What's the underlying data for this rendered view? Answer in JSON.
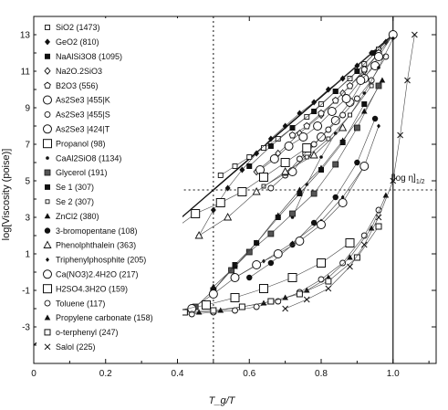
{
  "chart_data": {
    "type": "scatter",
    "xlabel": "T_g/T",
    "ylabel": "log[Viscosity (poise)]",
    "xlim": [
      0,
      1.12
    ],
    "ylim": [
      -5,
      14
    ],
    "xticks": [
      0,
      0.2,
      0.4,
      0.6,
      0.8,
      1.0
    ],
    "xtick_labels": [
      "0",
      "0.2",
      "0.4",
      "0.6",
      "0.8",
      "1.0"
    ],
    "yticks": [
      -3,
      -1,
      1,
      3,
      5,
      7,
      9,
      11,
      13
    ],
    "ytick_labels": [
      "-3",
      "-1",
      "1",
      "3",
      "5",
      "7",
      "9",
      "11",
      "13"
    ],
    "grid": false,
    "legend_position": "top-left",
    "annotations": [
      {
        "text": "[log η]",
        "sub": "1/2",
        "x": 1.03,
        "y": 4.75
      }
    ],
    "reference_lines": [
      {
        "type": "vertical",
        "x": 0.5,
        "style": "dotted"
      },
      {
        "type": "vertical",
        "x": 1.0,
        "style": "solid"
      },
      {
        "type": "horizontal",
        "y": 4.5,
        "style": "dotted"
      }
    ],
    "series": [
      {
        "name": "SiO2 (1473)",
        "marker": "square-open-small",
        "x": [
          0.52,
          0.56,
          0.6,
          0.64,
          0.68,
          0.72,
          0.76,
          0.8,
          0.84,
          0.88,
          0.92,
          0.96,
          1.0
        ],
        "y": [
          5.3,
          5.8,
          6.3,
          6.8,
          7.3,
          7.9,
          8.5,
          9.2,
          9.9,
          10.6,
          11.4,
          12.2,
          13.0
        ]
      },
      {
        "name": "GeO2 (810)",
        "marker": "diamond-filled",
        "x": [
          0.46,
          0.5,
          0.54,
          0.58,
          0.62,
          0.66,
          0.7,
          0.74,
          0.78,
          0.82,
          0.86,
          0.9,
          0.94,
          0.98,
          1.0
        ],
        "y": [
          2.0,
          3.4,
          4.6,
          5.6,
          6.5,
          7.3,
          8.0,
          8.7,
          9.3,
          10.0,
          10.6,
          11.3,
          12.0,
          12.6,
          13.0
        ]
      },
      {
        "name": "NaAlSi3O8 (1095)",
        "marker": "square-filled",
        "x": [
          0.6,
          0.66,
          0.72,
          0.78,
          0.84,
          0.9,
          0.95,
          1.0
        ],
        "y": [
          5.8,
          6.9,
          7.9,
          8.8,
          9.9,
          11.0,
          12.0,
          13.0
        ]
      },
      {
        "name": "Na2O.2SiO3",
        "marker": "diamond-open",
        "x": [
          0.62,
          0.68,
          0.74,
          0.8,
          0.86,
          0.92,
          0.96,
          1.0
        ],
        "y": [
          5.5,
          6.5,
          7.6,
          8.6,
          9.8,
          11.0,
          12.0,
          13.0
        ]
      },
      {
        "name": "B2O3 (556)",
        "marker": "pentagon-open",
        "x": [
          0.72,
          0.76,
          0.8,
          0.84,
          0.88,
          0.92,
          0.96,
          1.0
        ],
        "y": [
          7.5,
          8.0,
          8.7,
          9.4,
          10.2,
          11.1,
          12.0,
          13.0
        ]
      },
      {
        "name": "As2Se3 |455|K",
        "marker": "circle-open-large",
        "x": [
          0.72,
          0.76,
          0.8,
          0.84,
          0.88,
          0.92,
          0.96,
          1.0
        ],
        "y": [
          5.5,
          6.5,
          7.4,
          8.3,
          9.3,
          10.6,
          11.8,
          13.0
        ]
      },
      {
        "name": "As2Se3 |455|S",
        "marker": "circle-open",
        "x": [
          0.66,
          0.7,
          0.74,
          0.78,
          0.82,
          0.86,
          0.9,
          0.94,
          0.98
        ],
        "y": [
          4.6,
          5.3,
          6.2,
          7.0,
          7.8,
          8.6,
          9.5,
          10.5,
          11.8
        ]
      },
      {
        "name": "As2Se3 |424|T",
        "marker": "circle-open-large",
        "x": [
          0.63,
          0.67,
          0.71,
          0.75,
          0.79,
          0.83,
          0.87,
          0.91,
          0.95
        ],
        "y": [
          5.6,
          6.2,
          6.9,
          7.4,
          8.0,
          8.8,
          9.5,
          10.5,
          11.3
        ]
      },
      {
        "name": "Propanol (98)",
        "marker": "square-open-large",
        "x": [
          0.38,
          0.45,
          0.52,
          0.58,
          0.64,
          0.7,
          0.76
        ],
        "y": [
          2.2,
          3.2,
          3.8,
          4.4,
          5.2,
          6.0,
          6.8
        ]
      },
      {
        "name": "CaAl2SiO8 (1134)",
        "marker": "dot-small",
        "x": [
          0.72,
          0.76,
          0.8,
          0.84,
          0.88,
          0.92,
          0.96,
          1.0
        ],
        "y": [
          3.0,
          4.8,
          6.3,
          7.6,
          8.6,
          9.8,
          11.2,
          12.8
        ]
      },
      {
        "name": "Glycerol (191)",
        "marker": "square-halftone",
        "x": [
          0.45,
          0.5,
          0.55,
          0.6,
          0.66,
          0.72,
          0.78,
          0.84,
          0.9,
          0.96
        ],
        "y": [
          -1.9,
          -1.0,
          0.1,
          1.1,
          2.1,
          3.2,
          4.3,
          5.9,
          7.9,
          10.2
        ]
      },
      {
        "name": "Se 1 (307)",
        "marker": "square-filled",
        "x": [
          0.5,
          0.56,
          0.62,
          0.68,
          0.74,
          0.8,
          0.86,
          0.92
        ],
        "y": [
          -1.0,
          0.4,
          1.6,
          3.0,
          4.3,
          5.6,
          7.1,
          9.2
        ]
      },
      {
        "name": "Se 2 (307)",
        "marker": "square-small",
        "x": [
          0.64,
          0.7,
          0.76,
          0.82,
          0.88,
          0.94
        ],
        "y": [
          4.7,
          5.4,
          6.3,
          7.3,
          8.6,
          10.2
        ]
      },
      {
        "name": "ZnCl2 (380)",
        "marker": "triangle-filled",
        "x": [
          0.5,
          0.56,
          0.62,
          0.68,
          0.74,
          0.8,
          0.86,
          0.92,
          0.97
        ],
        "y": [
          -0.8,
          0.3,
          1.6,
          3.1,
          4.5,
          5.7,
          7.2,
          8.8,
          10.5
        ]
      },
      {
        "name": "3-bromopentane (108)",
        "marker": "circle-filled",
        "x": [
          0.6,
          0.66,
          0.72,
          0.78,
          0.84,
          0.9,
          0.95
        ],
        "y": [
          -0.3,
          0.5,
          1.5,
          2.7,
          4.1,
          6.0,
          8.4
        ]
      },
      {
        "name": "Phenolphthalein (363)",
        "marker": "triangle-open",
        "x": [
          0.46,
          0.54,
          0.62,
          0.7,
          0.78,
          0.86
        ],
        "y": [
          2.0,
          3.0,
          4.4,
          5.5,
          6.4,
          7.9
        ]
      },
      {
        "name": "Triphenylphosphite (205)",
        "marker": "diamond-small",
        "x": [
          0.56,
          0.64,
          0.72,
          0.8,
          0.86,
          0.92,
          0.96
        ],
        "y": [
          -0.3,
          0.6,
          1.6,
          2.8,
          4.1,
          5.8,
          8.0
        ]
      },
      {
        "name": "Ca(NO3)2.4H2O (217)",
        "marker": "circle-open-large",
        "x": [
          0.44,
          0.5,
          0.56,
          0.62,
          0.68,
          0.74,
          0.8,
          0.86,
          0.92
        ],
        "y": [
          -2.0,
          -1.2,
          -0.3,
          0.4,
          1.0,
          1.7,
          2.6,
          3.8,
          5.8
        ]
      },
      {
        "name": "H2SO4.3H2O (159)",
        "marker": "square-open-large",
        "x": [
          0.32,
          0.4,
          0.48,
          0.56,
          0.64,
          0.72,
          0.8,
          0.88
        ],
        "y": [
          -2.4,
          -2.1,
          -1.8,
          -1.4,
          -0.9,
          -0.3,
          0.5,
          1.6
        ]
      },
      {
        "name": "Toluene (117)",
        "marker": "circle-open",
        "x": [
          0.38,
          0.44,
          0.5,
          0.56,
          0.62,
          0.68,
          0.74,
          0.8,
          0.86,
          0.92,
          0.96
        ],
        "y": [
          -2.4,
          -2.3,
          -2.2,
          -2.1,
          -1.9,
          -1.6,
          -1.1,
          -0.4,
          0.5,
          2.0,
          3.4
        ]
      },
      {
        "name": "Propylene carbonate (158)",
        "marker": "triangle-filled",
        "x": [
          0.4,
          0.46,
          0.52,
          0.58,
          0.64,
          0.7,
          0.76,
          0.82,
          0.88,
          0.94,
          0.98
        ],
        "y": [
          -2.3,
          -2.2,
          -2.1,
          -1.9,
          -1.7,
          -1.4,
          -1.0,
          -0.3,
          0.8,
          2.4,
          4.2
        ]
      },
      {
        "name": "o-terphenyl (247)",
        "marker": "square-open",
        "x": [
          0.35,
          0.42,
          0.5,
          0.58,
          0.66,
          0.74,
          0.82,
          0.9,
          0.96
        ],
        "y": [
          -2.3,
          -2.2,
          -2.1,
          -1.9,
          -1.6,
          -1.2,
          -0.5,
          0.8,
          2.5
        ]
      },
      {
        "name": "Salol (225)",
        "marker": "cross",
        "x": [
          0.7,
          0.76,
          0.82,
          0.88,
          0.92,
          0.96,
          1.0,
          1.02,
          1.04,
          1.06
        ],
        "y": [
          -2.0,
          -1.5,
          -0.9,
          0.3,
          1.5,
          3.0,
          5.0,
          7.5,
          10.5,
          13.0
        ]
      }
    ],
    "guide_lines": [
      {
        "x": [
          0.0,
          1.0
        ],
        "y": [
          -4.0,
          13.0
        ]
      },
      {
        "x": [
          0.5,
          1.0
        ],
        "y": [
          4.5,
          13.0
        ]
      }
    ]
  }
}
